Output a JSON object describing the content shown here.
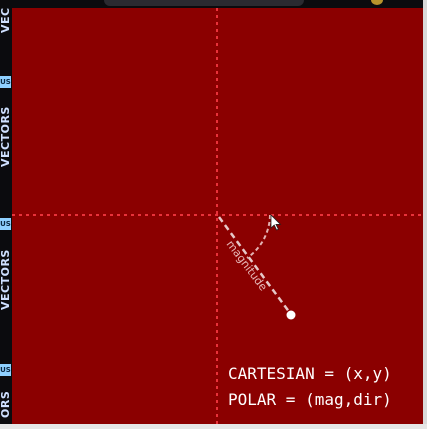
{
  "strip": {
    "labels": [
      "VEC",
      "VECTORS",
      "VECTORS",
      "ORS"
    ],
    "tags": [
      "US",
      "US",
      "US"
    ]
  },
  "canvas": {
    "background": "#8b0000",
    "axis_color": "#e8323a",
    "vector_color": "#e6c8c8",
    "vector_label": "magnitude",
    "cursor_icon": "pointer-cursor-icon"
  },
  "formulas": {
    "cartesian": "CARTESIAN = (x,y)",
    "polar": "POLAR = (mag,dir)"
  }
}
